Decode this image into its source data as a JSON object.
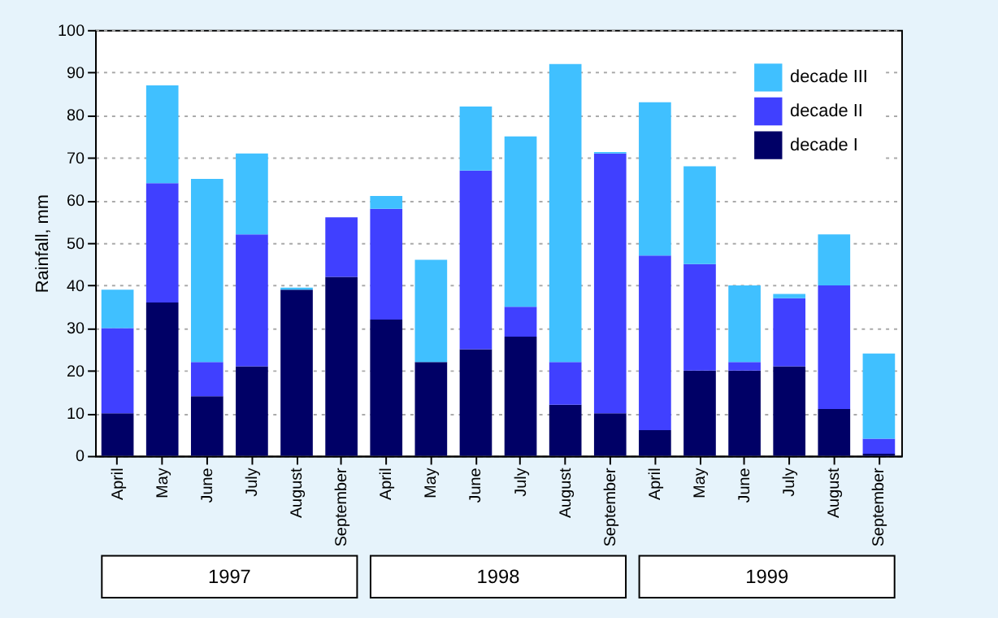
{
  "chart_data": {
    "type": "bar",
    "stacked": true,
    "ylabel": "Rainfall, mm",
    "categories": [
      "April",
      "May",
      "June",
      "July",
      "August",
      "September",
      "April",
      "May",
      "June",
      "July",
      "August",
      "September",
      "April",
      "May",
      "June",
      "July",
      "August",
      "September"
    ],
    "series": [
      {
        "name": "decade I",
        "color": "#000066",
        "values": [
          10,
          36,
          14,
          21,
          39,
          42,
          32,
          22,
          25,
          28,
          12,
          10,
          6,
          20,
          20,
          21,
          11,
          0.5
        ]
      },
      {
        "name": "decade II",
        "color": "#4040ff",
        "values": [
          20,
          28,
          8,
          31,
          0,
          14,
          26,
          0,
          42,
          7,
          10,
          61,
          41,
          25,
          2,
          16,
          29,
          3.5
        ]
      },
      {
        "name": "decade III",
        "color": "#40c0ff",
        "values": [
          9,
          23,
          43,
          19,
          0.5,
          0,
          3,
          24,
          15,
          40,
          70,
          0.3,
          36,
          23,
          18,
          1,
          12,
          20
        ]
      }
    ],
    "ylim": [
      0,
      100
    ],
    "yticks": [
      0,
      10,
      20,
      30,
      40,
      50,
      60,
      70,
      80,
      90,
      100
    ],
    "grid": "y",
    "legend": "top right",
    "annotations": [
      "1997",
      "1998",
      "1999"
    ]
  }
}
